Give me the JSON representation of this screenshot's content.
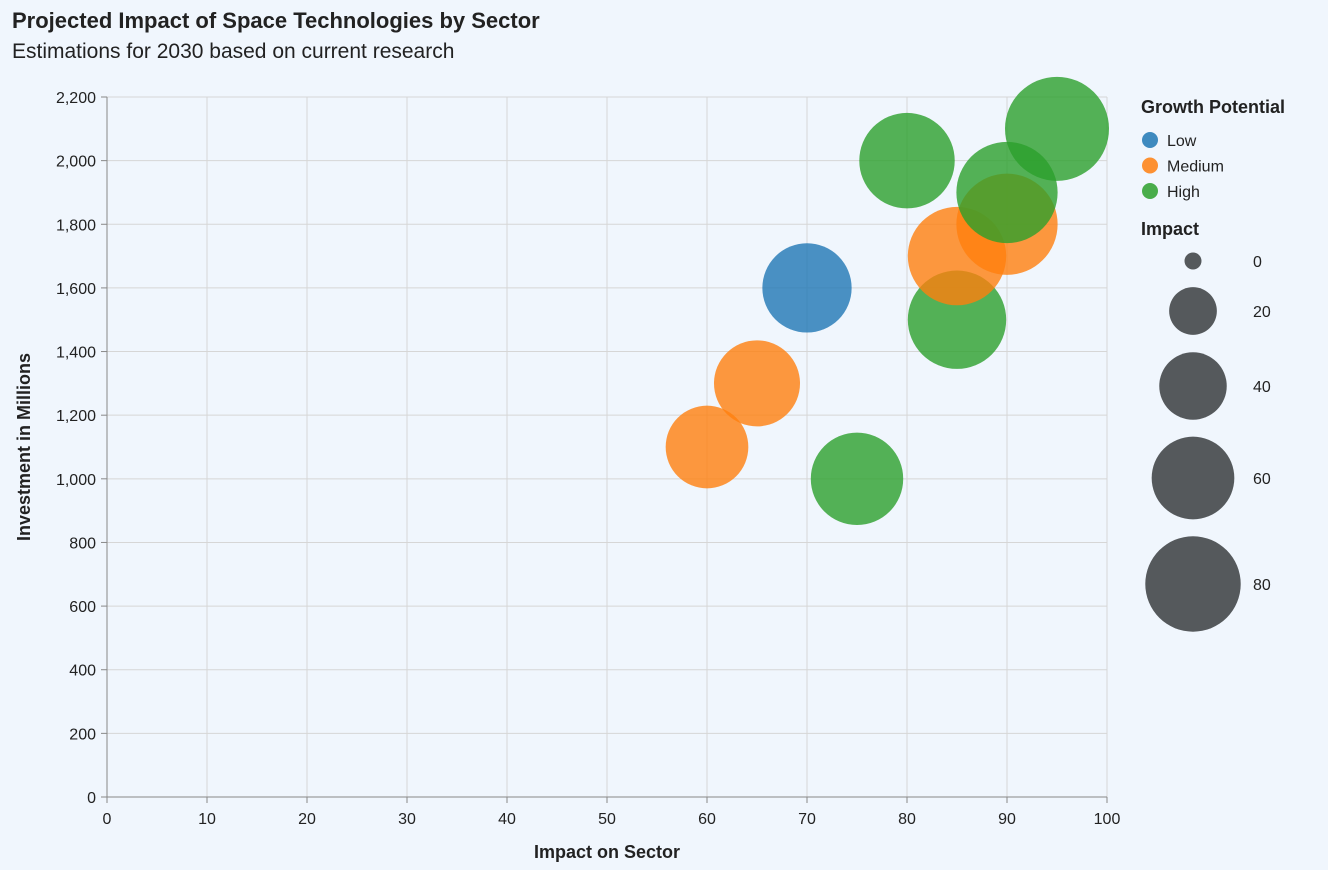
{
  "chart_data": {
    "type": "scatter",
    "title": "Projected Impact of Space Technologies by Sector",
    "subtitle": "Estimations for 2030 based on current research",
    "xlabel": "Impact on Sector",
    "ylabel": "Investment in Millions",
    "xlim": [
      0,
      100
    ],
    "ylim": [
      0,
      2200
    ],
    "x_ticks": [
      "0",
      "10",
      "20",
      "30",
      "40",
      "50",
      "60",
      "70",
      "80",
      "90",
      "100"
    ],
    "y_ticks": [
      "0",
      "200",
      "400",
      "600",
      "800",
      "1,000",
      "1,200",
      "1,400",
      "1,600",
      "1,800",
      "2,000",
      "2,200"
    ],
    "grid": true,
    "size_encoding": "Impact",
    "color_encoding": "Growth Potential",
    "colors": {
      "Low": "#1f77b4",
      "Medium": "#ff7f0e",
      "High": "#2ca02c"
    },
    "points": [
      {
        "x": 60,
        "y": 1100,
        "impact": 60,
        "growth": "Medium"
      },
      {
        "x": 65,
        "y": 1300,
        "impact": 65,
        "growth": "Medium"
      },
      {
        "x": 70,
        "y": 1600,
        "impact": 70,
        "growth": "Low"
      },
      {
        "x": 75,
        "y": 1000,
        "impact": 75,
        "growth": "High"
      },
      {
        "x": 80,
        "y": 2000,
        "impact": 80,
        "growth": "High"
      },
      {
        "x": 85,
        "y": 1500,
        "impact": 85,
        "growth": "High"
      },
      {
        "x": 85,
        "y": 1700,
        "impact": 85,
        "growth": "Medium"
      },
      {
        "x": 90,
        "y": 1800,
        "impact": 90,
        "growth": "Medium"
      },
      {
        "x": 90,
        "y": 1900,
        "impact": 90,
        "growth": "High"
      },
      {
        "x": 95,
        "y": 2100,
        "impact": 95,
        "growth": "High"
      }
    ]
  },
  "legend": {
    "color_title": "Growth Potential",
    "color_items": [
      {
        "label": "Low",
        "color": "#1f77b4"
      },
      {
        "label": "Medium",
        "color": "#ff7f0e"
      },
      {
        "label": "High",
        "color": "#2ca02c"
      }
    ],
    "size_title": "Impact",
    "size_items": [
      {
        "label": "0",
        "value": 0
      },
      {
        "label": "20",
        "value": 20
      },
      {
        "label": "40",
        "value": 40
      },
      {
        "label": "60",
        "value": 60
      },
      {
        "label": "80",
        "value": 80
      }
    ],
    "size_color": "#55595c"
  }
}
